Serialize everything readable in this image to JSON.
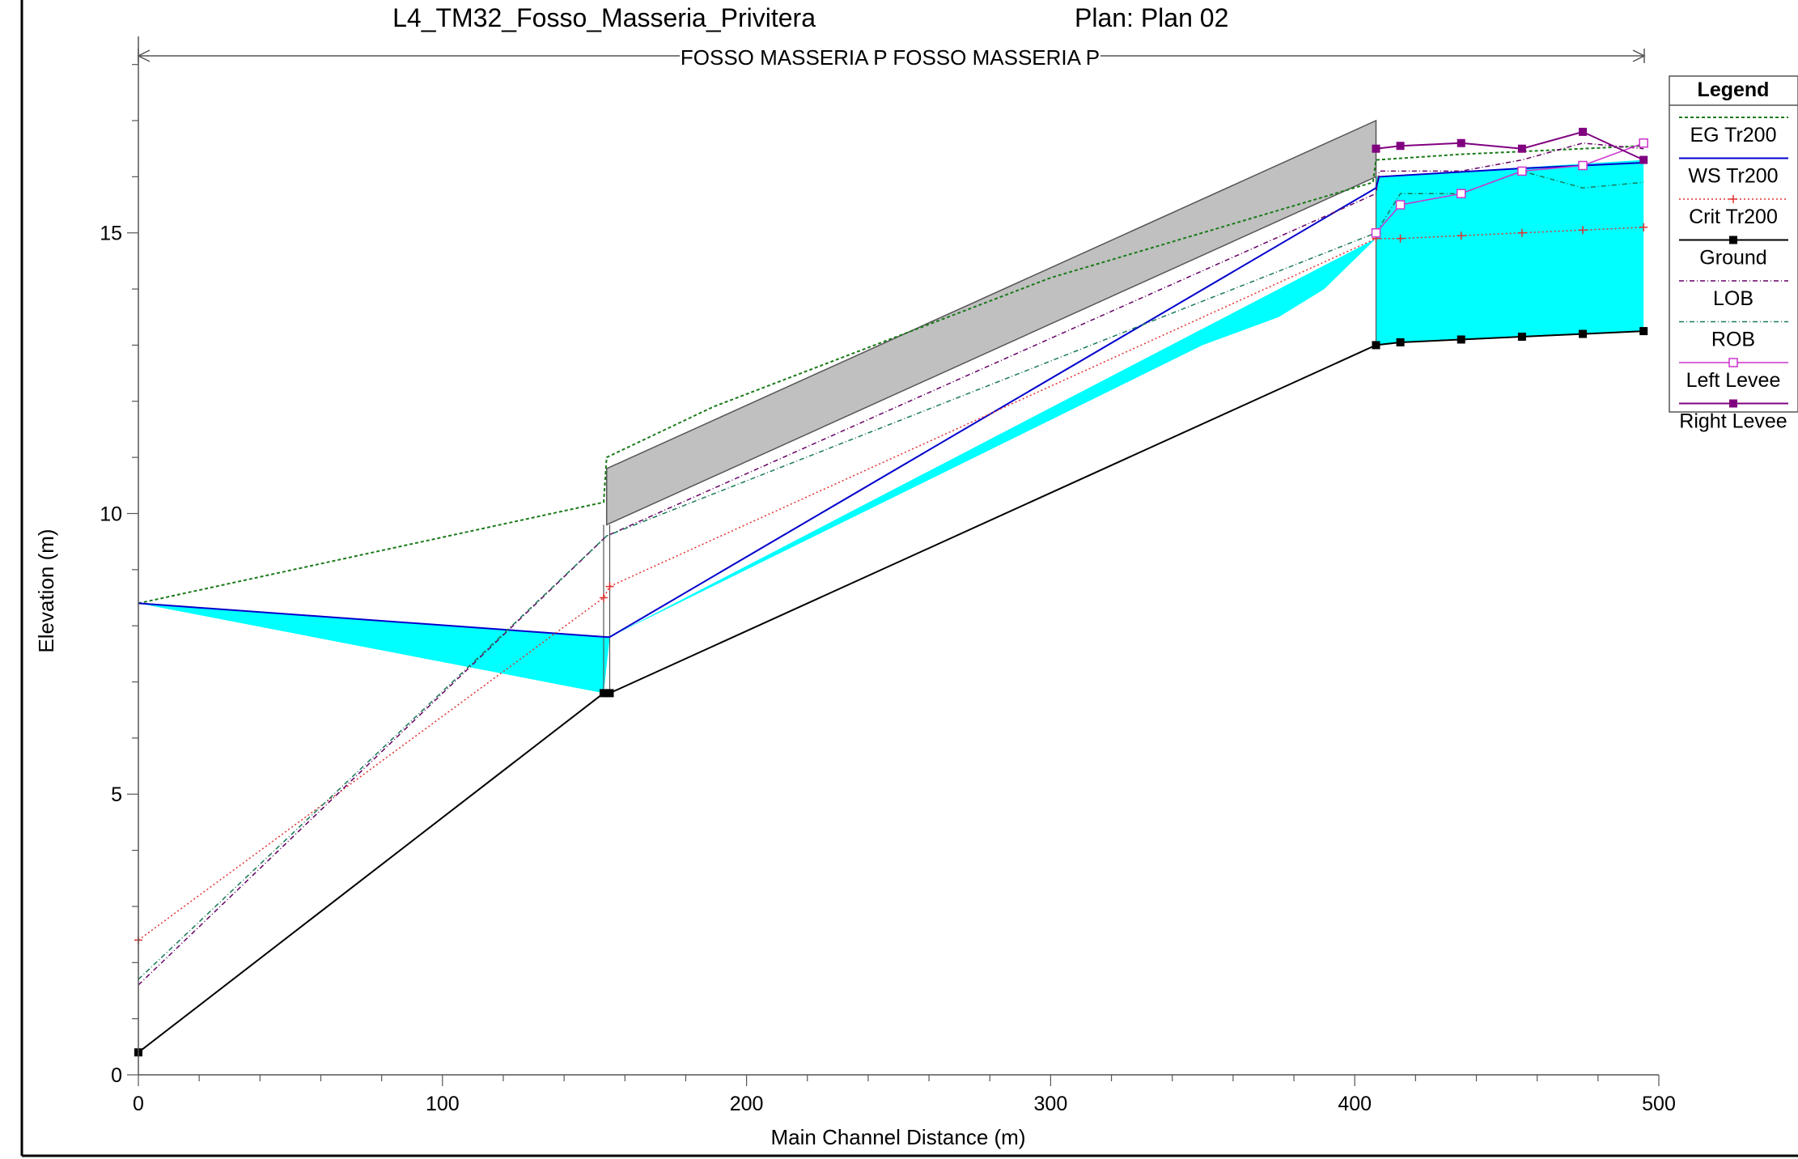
{
  "chart_data": {
    "type": "line",
    "title": "L4_TM32_Fosso_Masseria_Privitera",
    "plan": "Plan: Plan 02",
    "reach_label": "FOSSO MASSERIA P FOSSO MASSERIA P",
    "xlabel": "Main Channel Distance (m)",
    "ylabel": "Elevation (m)",
    "xlim": [
      0,
      500
    ],
    "ylim": [
      0,
      18.5
    ],
    "x_ticks": [
      "0",
      "100",
      "200",
      "300",
      "400",
      "500"
    ],
    "y_ticks": [
      "0",
      "5",
      "10",
      "15"
    ],
    "legend": {
      "title": "Legend",
      "placement": "right",
      "entries": [
        "EG  Tr200",
        "WS  Tr200",
        "Crit  Tr200",
        "Ground",
        "LOB",
        "ROB",
        "Left Levee",
        "Right Levee"
      ]
    },
    "colors": {
      "water_fill": "#00ffff",
      "structure_fill": "#c0c0c0",
      "eg": "#1a7a1a",
      "ws": "#0000cc",
      "crit": "#e03030",
      "ground": "#000000",
      "lob": "#660066",
      "rob": "#1a7a5a",
      "left_levee": "#cc33cc",
      "right_levee": "#800080"
    },
    "series": [
      {
        "name": "EG  Tr200",
        "x": [
          0,
          153,
          154,
          189,
          300,
          406,
          407,
          435,
          455,
          475,
          495
        ],
        "y": [
          8.4,
          10.2,
          11.0,
          11.9,
          14.2,
          15.9,
          16.3,
          16.4,
          16.45,
          16.5,
          16.55
        ]
      },
      {
        "name": "WS  Tr200",
        "x": [
          0,
          154,
          155,
          407,
          408,
          455,
          495
        ],
        "y": [
          8.4,
          7.8,
          7.8,
          15.8,
          16.0,
          16.15,
          16.25
        ]
      },
      {
        "name": "Crit  Tr200",
        "x": [
          0,
          153,
          155,
          407,
          415,
          435,
          455,
          475,
          495
        ],
        "y": [
          2.4,
          8.5,
          8.7,
          14.9,
          14.9,
          14.95,
          15.0,
          15.05,
          15.1
        ]
      },
      {
        "name": "Ground",
        "x": [
          0,
          153,
          155,
          407,
          415,
          435,
          455,
          475,
          495
        ],
        "y": [
          0.4,
          6.8,
          6.8,
          13.0,
          13.05,
          13.1,
          13.15,
          13.2,
          13.25
        ]
      },
      {
        "name": "LOB",
        "x": [
          0,
          154,
          407,
          408,
          435,
          455,
          475,
          495
        ],
        "y": [
          1.6,
          9.6,
          15.7,
          16.1,
          16.1,
          16.3,
          16.6,
          16.5
        ]
      },
      {
        "name": "ROB",
        "x": [
          0,
          154,
          407,
          415,
          435,
          455,
          475,
          495
        ],
        "y": [
          1.7,
          9.6,
          15.0,
          15.7,
          15.7,
          16.1,
          15.8,
          15.9
        ]
      },
      {
        "name": "Left Levee",
        "x": [
          407,
          415,
          435,
          455,
          475,
          495
        ],
        "y": [
          15.0,
          15.5,
          15.7,
          16.1,
          16.2,
          16.6
        ]
      },
      {
        "name": "Right Levee",
        "x": [
          407,
          415,
          435,
          455,
          475,
          495
        ],
        "y": [
          16.5,
          16.55,
          16.6,
          16.5,
          16.8,
          16.3
        ]
      }
    ],
    "structure": {
      "x": [
        154,
        407
      ],
      "top": [
        10.8,
        17.0
      ],
      "bottom": [
        9.8,
        16.0
      ]
    },
    "water_polygon": {
      "x": [
        0,
        153,
        155,
        407,
        407,
        495,
        495,
        475,
        455,
        435,
        415,
        407,
        407,
        390,
        375,
        350,
        155,
        153
      ],
      "y": [
        8.4,
        7.8,
        7.8,
        14.9,
        16.0,
        16.3,
        13.25,
        13.2,
        13.15,
        13.1,
        13.05,
        13.0,
        14.9,
        14.0,
        13.5,
        13.0,
        7.8,
        6.8
      ]
    }
  }
}
